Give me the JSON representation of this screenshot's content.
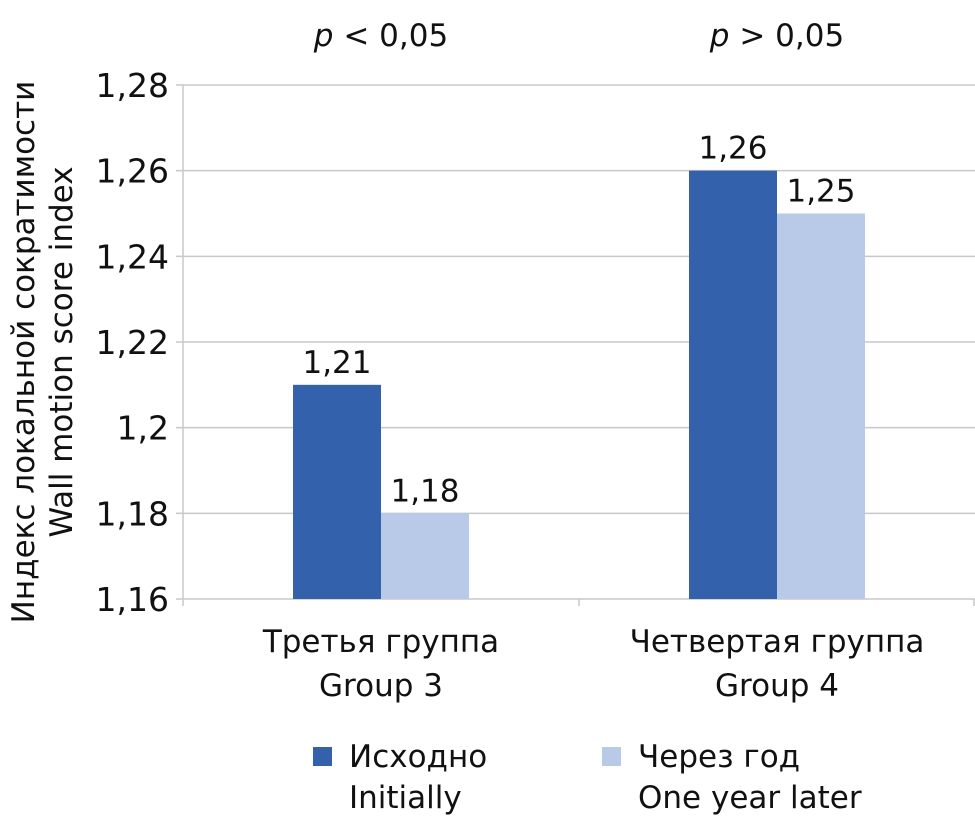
{
  "chart_data": {
    "type": "bar",
    "ylabel_lines": [
      "Индекс локальной сократимости",
      "Wall motion score index"
    ],
    "ylim": [
      1.16,
      1.28
    ],
    "y_ticks": [
      {
        "value": 1.16,
        "label": "1,16"
      },
      {
        "value": 1.18,
        "label": "1,18"
      },
      {
        "value": 1.2,
        "label": "1,2"
      },
      {
        "value": 1.22,
        "label": "1,22"
      },
      {
        "value": 1.24,
        "label": "1,24"
      },
      {
        "value": 1.26,
        "label": "1,26"
      },
      {
        "value": 1.28,
        "label": "1,28"
      }
    ],
    "grid": true,
    "categories": [
      {
        "line1": "Третья группа",
        "line2": "Group 3",
        "annotation": "p < 0,05"
      },
      {
        "line1": "Четвертая группа",
        "line2": "Group 4",
        "annotation": "p > 0,05"
      }
    ],
    "series": [
      {
        "name_line1": "Исходно",
        "name_line2": "Initially",
        "color": "#3461ab",
        "values": [
          1.21,
          1.26
        ],
        "labels": [
          "1,21",
          "1,26"
        ]
      },
      {
        "name_line1": "Через год",
        "name_line2": "One year later",
        "color": "#b9c9e8",
        "values": [
          1.18,
          1.25
        ],
        "labels": [
          "1,18",
          "1,25"
        ]
      }
    ],
    "legend_position": "bottom"
  }
}
